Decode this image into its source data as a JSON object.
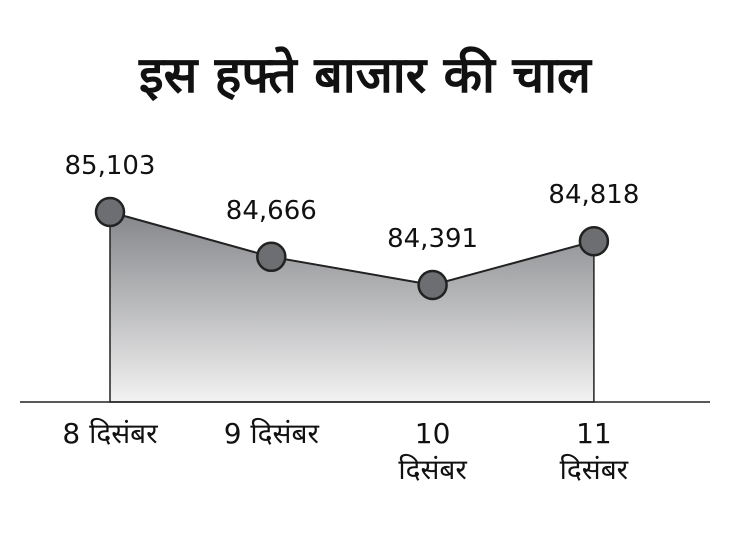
{
  "chart_data": {
    "type": "area",
    "title": "इस हफ्ते बाजार की चाल",
    "categories": [
      "8 दिसंबर",
      "9 दिसंबर",
      "10 दिसंबर",
      "11 दिसंबर"
    ],
    "values": [
      85103,
      84666,
      84391,
      84818
    ],
    "value_labels": [
      "85,103",
      "84,666",
      "84,391",
      "84,818"
    ],
    "color": "#6d6e71"
  }
}
